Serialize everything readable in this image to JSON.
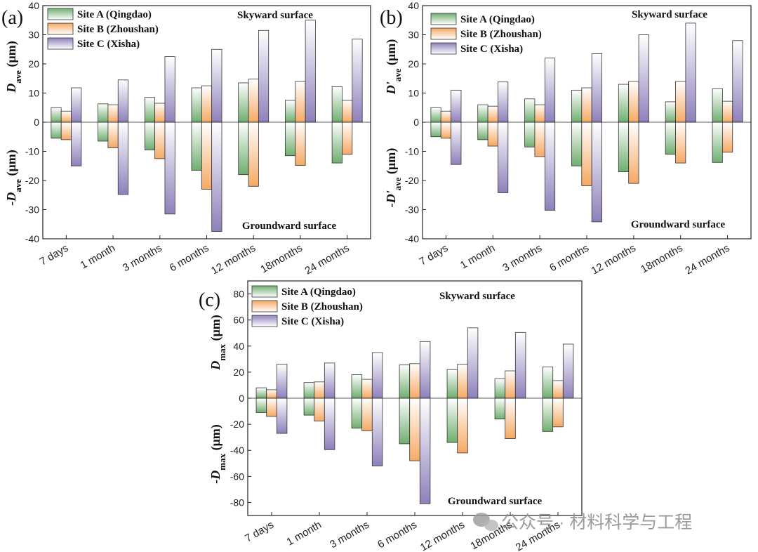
{
  "legend": [
    {
      "name": "Site A (Qingdao)",
      "color": "#6fae6f"
    },
    {
      "name": "Site B (Zhoushan)",
      "color": "#f5a964"
    },
    {
      "name": "Site C (Xisha)",
      "color": "#8e80bb"
    }
  ],
  "annotations": {
    "top": "Skyward surface",
    "bottom": "Groundward surface"
  },
  "watermark": "公众号 · 材料科学与工程",
  "chart_data": [
    {
      "panel_label": "(a)",
      "type": "bar",
      "categories": [
        "7 days",
        "1 month",
        "3 months",
        "6 months",
        "12 months",
        "18months",
        "24 months"
      ],
      "ylabel_top": {
        "main": "D",
        "sub": "ave",
        "unit": " (μm)"
      },
      "ylabel_bottom": {
        "main": "-D",
        "sub": "ave",
        "unit": " (μm)"
      },
      "ylim": [
        -40,
        40
      ],
      "yticks": [
        -40,
        -30,
        -20,
        -10,
        0,
        10,
        20,
        30,
        40
      ],
      "series": [
        {
          "name": "Site A (Qingdao)",
          "skyward": [
            5,
            6.3,
            8.5,
            11.8,
            13.5,
            7.5,
            12.2
          ],
          "groundward": [
            -5.5,
            -6.5,
            -9.5,
            -16.5,
            -18,
            -11.5,
            -14
          ]
        },
        {
          "name": "Site B (Zhoushan)",
          "skyward": [
            3.8,
            6,
            6.5,
            12.5,
            14.8,
            14,
            7.5
          ],
          "groundward": [
            -6,
            -8.8,
            -12.5,
            -23,
            -22,
            -14.8,
            -11
          ]
        },
        {
          "name": "Site C (Xisha)",
          "skyward": [
            11.8,
            14.5,
            22.5,
            25,
            31.5,
            35,
            28.5
          ],
          "groundward": [
            -15,
            -24.8,
            -31.5,
            -37.5,
            null,
            null,
            null
          ]
        }
      ]
    },
    {
      "panel_label": "(b)",
      "type": "bar",
      "categories": [
        "7 days",
        "1 month",
        "3 months",
        "6 months",
        "12 months",
        "18months",
        "24 months"
      ],
      "ylabel_top": {
        "main": "D'",
        "sub": "ave",
        "unit": " (μm)"
      },
      "ylabel_bottom": {
        "main": "-D'",
        "sub": "ave",
        "unit": " (μm)"
      },
      "ylim": [
        -40,
        40
      ],
      "yticks": [
        -40,
        -30,
        -20,
        -10,
        0,
        10,
        20,
        30,
        40
      ],
      "series": [
        {
          "name": "Site A (Qingdao)",
          "skyward": [
            5,
            6,
            8,
            11,
            13,
            7,
            11.5
          ],
          "groundward": [
            -5,
            -6,
            -8.5,
            -15,
            -17,
            -11,
            -13.8
          ]
        },
        {
          "name": "Site B (Zhoushan)",
          "skyward": [
            3.8,
            5.5,
            6,
            11.8,
            14,
            14,
            7.2
          ],
          "groundward": [
            -5.5,
            -8.2,
            -11.8,
            -21.8,
            -21,
            -14,
            -10.3
          ]
        },
        {
          "name": "Site C (Xisha)",
          "skyward": [
            11,
            13.8,
            22,
            23.5,
            30,
            34,
            28
          ],
          "groundward": [
            -14.5,
            -24.2,
            -30.2,
            -34.2,
            null,
            null,
            null
          ]
        }
      ]
    },
    {
      "panel_label": "(c)",
      "type": "bar",
      "categories": [
        "7 days",
        "1 month",
        "3 months",
        "6 months",
        "12 months",
        "18months",
        "24 months"
      ],
      "ylabel_top": {
        "main": "D",
        "sub": "max",
        "unit": " (μm)"
      },
      "ylabel_bottom": {
        "main": "-D",
        "sub": "max",
        "unit": " (μm)"
      },
      "ylim": [
        -90,
        90
      ],
      "yticks": [
        -80,
        -60,
        -40,
        -20,
        0,
        20,
        40,
        60,
        80
      ],
      "series": [
        {
          "name": "Site A (Qingdao)",
          "skyward": [
            8,
            12,
            18,
            25.5,
            22,
            15,
            24
          ],
          "groundward": [
            -11,
            -13,
            -23,
            -35,
            -34,
            -16,
            -25.5
          ]
        },
        {
          "name": "Site B (Zhoushan)",
          "skyward": [
            6.5,
            12.5,
            14.5,
            26.5,
            26,
            21,
            13.5
          ],
          "groundward": [
            -14,
            -17.5,
            -25,
            -48,
            -42,
            -31,
            -22
          ]
        },
        {
          "name": "Site C (Xisha)",
          "skyward": [
            26,
            27,
            35,
            43.5,
            54,
            50.5,
            41.5
          ],
          "groundward": [
            -27,
            -39.5,
            -52,
            -81,
            null,
            null,
            null
          ]
        }
      ]
    }
  ]
}
